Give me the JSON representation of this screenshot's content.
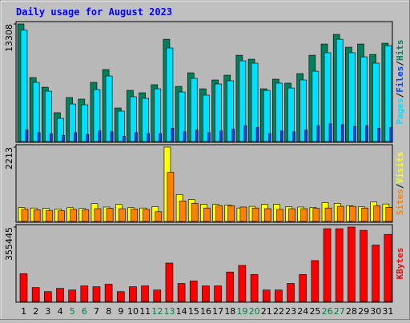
{
  "chart_data": [
    {
      "type": "bar",
      "title": "Daily usage for August 2023",
      "legend_separator": "/",
      "ylim": [
        0,
        13308
      ],
      "yticks": [
        13308
      ],
      "series": [
        {
          "name": "Pages",
          "color": "#00e0ff",
          "values": [
            12600,
            6700,
            5700,
            2620,
            4250,
            4160,
            5880,
            7420,
            3440,
            5070,
            4890,
            5970,
            10590,
            5610,
            7150,
            5250,
            6520,
            6880,
            9140,
            8870,
            5790,
            6610,
            6060,
            6970,
            7960,
            10050,
            11580,
            10050,
            9590,
            8870,
            10860
          ]
        },
        {
          "name": "Files",
          "color": "#0040ff",
          "values": [
            1300,
            1000,
            900,
            700,
            1000,
            800,
            1200,
            1100,
            600,
            1000,
            900,
            900,
            1500,
            1100,
            1300,
            1000,
            1200,
            1400,
            1800,
            1600,
            900,
            1200,
            1100,
            1300,
            1800,
            2000,
            1900,
            1700,
            1800,
            1500,
            1600
          ]
        },
        {
          "name": "Hits",
          "color": "#00805c",
          "values": [
            13308,
            7240,
            6150,
            3260,
            4980,
            4800,
            6700,
            8150,
            3800,
            5790,
            5520,
            6430,
            11580,
            6240,
            7780,
            5970,
            6970,
            7510,
            9770,
            9320,
            5970,
            7060,
            6610,
            7690,
            9770,
            11040,
            12130,
            10680,
            11040,
            9860,
            11130
          ]
        }
      ]
    },
    {
      "type": "bar",
      "legend_separator": "/",
      "ylim": [
        0,
        2213
      ],
      "yticks": [
        2213
      ],
      "series": [
        {
          "name": "Sites",
          "color": "#ff8000",
          "values": [
            365,
            350,
            330,
            320,
            360,
            350,
            380,
            390,
            380,
            370,
            360,
            290,
            1460,
            610,
            540,
            400,
            470,
            470,
            430,
            400,
            380,
            360,
            380,
            380,
            390,
            400,
            450,
            450,
            400,
            470,
            420
          ]
        },
        {
          "name": "Visits",
          "color": "#ffff00",
          "values": [
            413,
            400,
            390,
            370,
            410,
            390,
            530,
            430,
            510,
            410,
            400,
            440,
            2213,
            800,
            655,
            510,
            510,
            490,
            400,
            450,
            510,
            510,
            440,
            430,
            420,
            560,
            540,
            470,
            440,
            580,
            520
          ]
        }
      ]
    },
    {
      "type": "bar",
      "ylim": [
        0,
        355445
      ],
      "yticks": [
        355445
      ],
      "categories": [
        "1",
        "2",
        "3",
        "4",
        "5",
        "6",
        "7",
        "8",
        "9",
        "10",
        "11",
        "12",
        "13",
        "14",
        "15",
        "16",
        "17",
        "18",
        "19",
        "20",
        "21",
        "22",
        "23",
        "24",
        "25",
        "26",
        "27",
        "28",
        "29",
        "30",
        "31"
      ],
      "category_colors": [
        "#000000",
        "#000000",
        "#000000",
        "#000000",
        "#008040",
        "#008040",
        "#000000",
        "#000000",
        "#000000",
        "#000000",
        "#000000",
        "#008040",
        "#008040",
        "#000000",
        "#000000",
        "#000000",
        "#000000",
        "#000000",
        "#008040",
        "#008040",
        "#000000",
        "#000000",
        "#000000",
        "#000000",
        "#000000",
        "#008040",
        "#008040",
        "#000000",
        "#000000",
        "#000000",
        "#000000"
      ],
      "series": [
        {
          "name": "KBytes",
          "color": "#ff0000",
          "values": [
            132800,
            66400,
            46900,
            62500,
            54700,
            74200,
            70300,
            82000,
            46900,
            70300,
            74200,
            54700,
            183600,
            85900,
            97700,
            74200,
            74200,
            140600,
            171900,
            128900,
            54700,
            54700,
            85900,
            128900,
            195300,
            347600,
            347600,
            355445,
            339800,
            269500,
            320300
          ]
        }
      ]
    }
  ]
}
